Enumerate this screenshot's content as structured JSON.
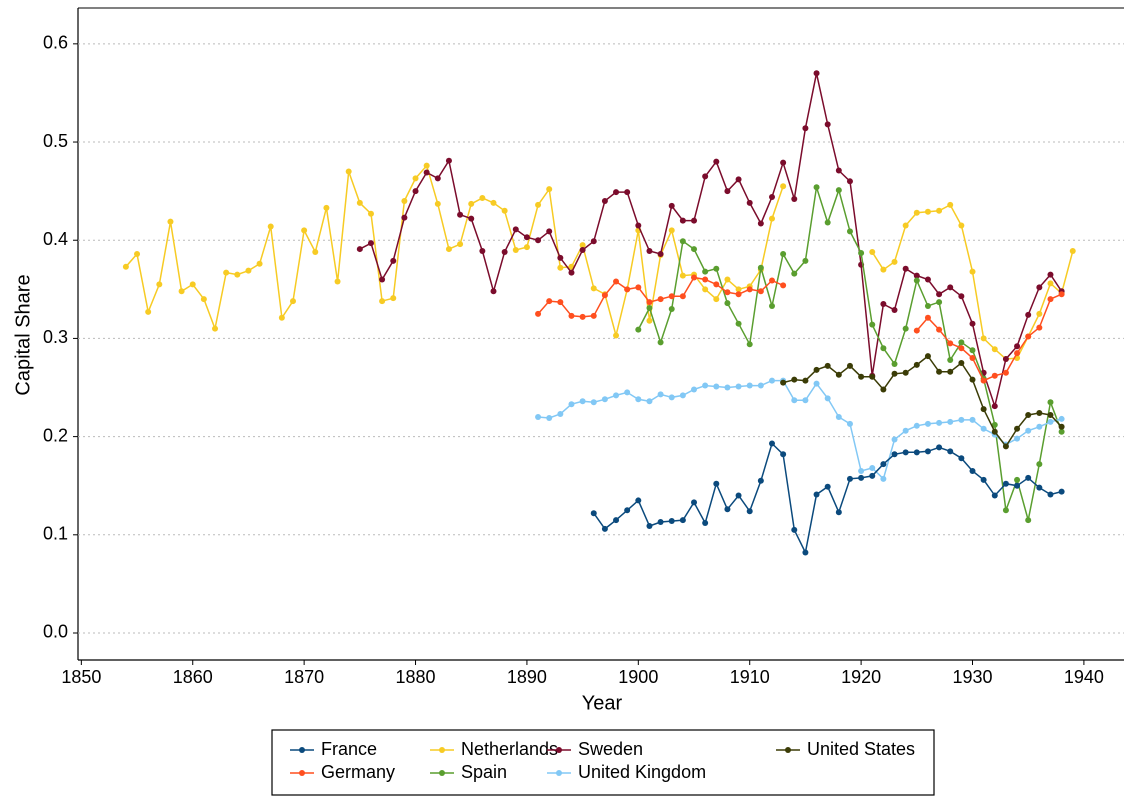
{
  "chart_data": {
    "type": "line",
    "xlabel": "Year",
    "ylabel": "Capital Share",
    "xlim": [
      1849.7,
      1943.6
    ],
    "ylim": [
      -0.0275,
      0.6365
    ],
    "xticks": [
      1850,
      1860,
      1870,
      1880,
      1890,
      1900,
      1910,
      1920,
      1930,
      1940
    ],
    "yticks": [
      {
        "value": 0,
        "label": "0.0"
      },
      0.1,
      0.2,
      0.3,
      0.4,
      0.5,
      0.6
    ],
    "grid": true,
    "legend": "bottom",
    "series": [
      {
        "name": "France",
        "color": "#0b4a7d",
        "x": [
          1896,
          1897,
          1898,
          1899,
          1900,
          1901,
          1902,
          1903,
          1904,
          1905,
          1906,
          1907,
          1908,
          1909,
          1910,
          1911,
          1912,
          1913,
          1914,
          1915,
          1916,
          1917,
          1918,
          1919,
          1920,
          1921,
          1922,
          1923,
          1924,
          1925,
          1926,
          1927,
          1928,
          1929,
          1930,
          1931,
          1932,
          1933,
          1934,
          1935,
          1936,
          1937,
          1938
        ],
        "values": [
          0.122,
          0.106,
          0.115,
          0.125,
          0.135,
          0.109,
          0.113,
          0.114,
          0.115,
          0.133,
          0.112,
          0.152,
          0.126,
          0.14,
          0.124,
          0.155,
          0.193,
          0.182,
          0.105,
          0.082,
          0.141,
          0.149,
          0.123,
          0.157,
          0.158,
          0.16,
          0.172,
          0.182,
          0.184,
          0.184,
          0.185,
          0.189,
          0.185,
          0.178,
          0.165,
          0.156,
          0.14,
          0.152,
          0.15,
          0.158,
          0.148,
          0.141,
          0.144
        ]
      },
      {
        "name": "Germany",
        "color": "#ff4f1f",
        "x": [
          1891,
          1892,
          1893,
          1894,
          1895,
          1896,
          1897,
          1898,
          1899,
          1900,
          1901,
          1902,
          1903,
          1904,
          1905,
          1906,
          1907,
          1908,
          1909,
          1910,
          1911,
          1912,
          1913,
          1914,
          1915,
          1916,
          1917,
          1918,
          1919,
          1920,
          1921,
          1922,
          1923,
          1924,
          1925,
          1926,
          1927,
          1928,
          1929,
          1930,
          1931,
          1932,
          1933,
          1934,
          1935,
          1936,
          1937,
          1938
        ],
        "values": [
          0.325,
          0.338,
          0.337,
          0.323,
          0.322,
          0.323,
          0.344,
          0.358,
          0.35,
          0.352,
          0.337,
          0.34,
          0.343,
          0.343,
          0.362,
          0.36,
          0.355,
          0.347,
          0.345,
          0.35,
          0.348,
          0.359,
          0.354,
          null,
          null,
          null,
          null,
          null,
          null,
          null,
          null,
          null,
          null,
          null,
          0.308,
          0.321,
          0.309,
          0.295,
          0.29,
          0.28,
          0.257,
          0.262,
          0.265,
          0.285,
          0.302,
          0.311,
          0.34,
          0.345
        ]
      },
      {
        "name": "Netherlands",
        "color": "#f7cb24",
        "x": [
          1854,
          1855,
          1856,
          1857,
          1858,
          1859,
          1860,
          1861,
          1862,
          1863,
          1864,
          1865,
          1866,
          1867,
          1868,
          1869,
          1870,
          1871,
          1872,
          1873,
          1874,
          1875,
          1876,
          1877,
          1878,
          1879,
          1880,
          1881,
          1882,
          1883,
          1884,
          1885,
          1886,
          1887,
          1888,
          1889,
          1890,
          1891,
          1892,
          1893,
          1894,
          1895,
          1896,
          1897,
          1898,
          1899,
          1900,
          1901,
          1902,
          1903,
          1904,
          1905,
          1906,
          1907,
          1908,
          1909,
          1910,
          1911,
          1912,
          1913,
          1914,
          1915,
          1916,
          1917,
          1918,
          1919,
          1920,
          1921,
          1922,
          1923,
          1924,
          1925,
          1926,
          1927,
          1928,
          1929,
          1930,
          1931,
          1932,
          1933,
          1934,
          1935,
          1936,
          1937,
          1938,
          1939
        ],
        "values": [
          0.373,
          0.386,
          0.327,
          0.355,
          0.419,
          0.348,
          0.355,
          0.34,
          0.31,
          0.367,
          0.365,
          0.369,
          0.376,
          0.414,
          0.321,
          0.338,
          0.41,
          0.388,
          0.433,
          0.358,
          0.47,
          0.438,
          0.427,
          0.338,
          0.341,
          0.44,
          0.463,
          0.476,
          0.437,
          0.391,
          0.396,
          0.437,
          0.443,
          0.438,
          0.43,
          0.39,
          0.393,
          0.436,
          0.452,
          0.372,
          0.373,
          0.395,
          0.351,
          0.345,
          0.303,
          0.35,
          0.41,
          0.318,
          0.385,
          0.41,
          0.364,
          0.365,
          0.35,
          0.34,
          0.36,
          0.35,
          0.353,
          0.37,
          0.422,
          0.455,
          null,
          null,
          null,
          null,
          null,
          null,
          null,
          0.388,
          0.37,
          0.378,
          0.415,
          0.428,
          0.429,
          0.43,
          0.436,
          0.415,
          0.368,
          0.3,
          0.289,
          0.279,
          0.28,
          0.302,
          0.325,
          0.356,
          0.346,
          0.389
        ]
      },
      {
        "name": "Spain",
        "color": "#5a9e2f",
        "x": [
          1900,
          1901,
          1902,
          1903,
          1904,
          1905,
          1906,
          1907,
          1908,
          1909,
          1910,
          1911,
          1912,
          1913,
          1914,
          1915,
          1916,
          1917,
          1918,
          1919,
          1920,
          1921,
          1922,
          1923,
          1924,
          1925,
          1926,
          1927,
          1928,
          1929,
          1930,
          1931,
          1932,
          1933,
          1934,
          1935,
          1936,
          1937,
          1938
        ],
        "values": [
          0.309,
          0.331,
          0.296,
          0.33,
          0.399,
          0.391,
          0.368,
          0.371,
          0.336,
          0.315,
          0.294,
          0.372,
          0.333,
          0.386,
          0.366,
          0.379,
          0.454,
          0.418,
          0.451,
          0.409,
          0.387,
          0.314,
          0.29,
          0.274,
          0.31,
          0.359,
          0.333,
          0.337,
          0.278,
          0.296,
          0.288,
          0.259,
          0.212,
          0.125,
          0.156,
          0.115,
          0.172,
          0.235,
          0.205
        ]
      },
      {
        "name": "Sweden",
        "color": "#7b0c2c",
        "x": [
          1875,
          1876,
          1877,
          1878,
          1879,
          1880,
          1881,
          1882,
          1883,
          1884,
          1885,
          1886,
          1887,
          1888,
          1889,
          1890,
          1891,
          1892,
          1893,
          1894,
          1895,
          1896,
          1897,
          1898,
          1899,
          1900,
          1901,
          1902,
          1903,
          1904,
          1905,
          1906,
          1907,
          1908,
          1909,
          1910,
          1911,
          1912,
          1913,
          1914,
          1915,
          1916,
          1917,
          1918,
          1919,
          1920,
          1921,
          1922,
          1923,
          1924,
          1925,
          1926,
          1927,
          1928,
          1929,
          1930,
          1931,
          1932,
          1933,
          1934,
          1935,
          1936,
          1937,
          1938
        ],
        "values": [
          0.391,
          0.397,
          0.36,
          0.379,
          0.423,
          0.45,
          0.469,
          0.463,
          0.481,
          0.426,
          0.422,
          0.389,
          0.348,
          0.388,
          0.411,
          0.403,
          0.4,
          0.409,
          0.382,
          0.367,
          0.39,
          0.399,
          0.44,
          0.449,
          0.449,
          0.415,
          0.389,
          0.386,
          0.435,
          0.42,
          0.42,
          0.465,
          0.48,
          0.45,
          0.462,
          0.438,
          0.417,
          0.444,
          0.479,
          0.442,
          0.514,
          0.57,
          0.518,
          0.471,
          0.46,
          0.375,
          0.262,
          0.335,
          0.329,
          0.371,
          0.364,
          0.36,
          0.345,
          0.352,
          0.343,
          0.315,
          0.265,
          0.231,
          0.279,
          0.292,
          0.324,
          0.352,
          0.365,
          0.348
        ]
      },
      {
        "name": "United Kingdom",
        "color": "#82c8f5",
        "x": [
          1891,
          1892,
          1893,
          1894,
          1895,
          1896,
          1897,
          1898,
          1899,
          1900,
          1901,
          1902,
          1903,
          1904,
          1905,
          1906,
          1907,
          1908,
          1909,
          1910,
          1911,
          1912,
          1913,
          1914,
          1915,
          1916,
          1917,
          1918,
          1919,
          1920,
          1921,
          1922,
          1923,
          1924,
          1925,
          1926,
          1927,
          1928,
          1929,
          1930,
          1931,
          1932,
          1933,
          1934,
          1935,
          1936,
          1937,
          1938
        ],
        "values": [
          0.22,
          0.219,
          0.223,
          0.233,
          0.236,
          0.235,
          0.238,
          0.242,
          0.245,
          0.238,
          0.236,
          0.243,
          0.24,
          0.242,
          0.248,
          0.252,
          0.251,
          0.25,
          0.251,
          0.252,
          0.252,
          0.257,
          0.257,
          0.237,
          0.237,
          0.254,
          0.239,
          0.22,
          0.213,
          0.165,
          0.168,
          0.157,
          0.197,
          0.206,
          0.211,
          0.213,
          0.214,
          0.215,
          0.217,
          0.217,
          0.208,
          0.202,
          0.192,
          0.198,
          0.206,
          0.21,
          0.215,
          0.218
        ]
      },
      {
        "name": "United States",
        "color": "#3b3c06",
        "x": [
          1913,
          1914,
          1915,
          1916,
          1917,
          1918,
          1919,
          1920,
          1921,
          1922,
          1923,
          1924,
          1925,
          1926,
          1927,
          1928,
          1929,
          1930,
          1931,
          1932,
          1933,
          1934,
          1935,
          1936,
          1937,
          1938
        ],
        "values": [
          0.255,
          0.258,
          0.257,
          0.268,
          0.272,
          0.263,
          0.272,
          0.261,
          0.261,
          0.248,
          0.264,
          0.265,
          0.273,
          0.282,
          0.266,
          0.266,
          0.275,
          0.258,
          0.228,
          0.205,
          0.19,
          0.208,
          0.222,
          0.224,
          0.222,
          0.21
        ]
      }
    ]
  }
}
